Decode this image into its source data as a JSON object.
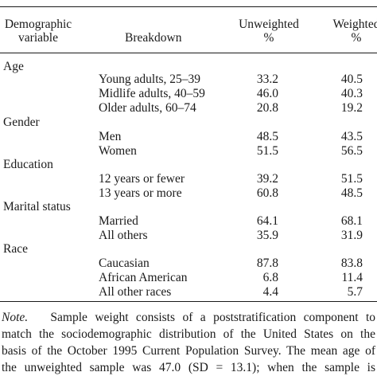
{
  "header": {
    "col1_line1": "Demographic",
    "col1_line2": "variable",
    "col2": "Breakdown",
    "col3_line1": "Unweighted",
    "col3_line2": "%",
    "col4_line1": "Weighted",
    "col4_line2": "%"
  },
  "groups": [
    {
      "name": "Age",
      "rows": [
        {
          "label": "Young adults, 25–39",
          "unweighted": "33.2",
          "weighted": "40.5"
        },
        {
          "label": "Midlife adults, 40–59",
          "unweighted": "46.0",
          "weighted": "40.3"
        },
        {
          "label": "Older adults, 60–74",
          "unweighted": "20.8",
          "weighted": "19.2"
        }
      ]
    },
    {
      "name": "Gender",
      "rows": [
        {
          "label": "Men",
          "unweighted": "48.5",
          "weighted": "43.5"
        },
        {
          "label": "Women",
          "unweighted": "51.5",
          "weighted": "56.5"
        }
      ]
    },
    {
      "name": "Education",
      "rows": [
        {
          "label": "12 years or fewer",
          "unweighted": "39.2",
          "weighted": "51.5"
        },
        {
          "label": "13 years or more",
          "unweighted": "60.8",
          "weighted": "48.5"
        }
      ]
    },
    {
      "name": "Marital status",
      "rows": [
        {
          "label": "Married",
          "unweighted": "64.1",
          "weighted": "68.1"
        },
        {
          "label": "All others",
          "unweighted": "35.9",
          "weighted": "31.9"
        }
      ]
    },
    {
      "name": "Race",
      "rows": [
        {
          "label": "Caucasian",
          "unweighted": "87.8",
          "weighted": "83.8"
        },
        {
          "label": "African American",
          "unweighted": "6.8",
          "weighted": "11.4"
        },
        {
          "label": "All other races",
          "unweighted": "4.4",
          "weighted": "5.7"
        }
      ]
    }
  ],
  "note": {
    "label": "Note.",
    "line1": "Sample weight consists of a poststratification component to",
    "line2": "match the sociodemographic distribution of the United States on the",
    "line3": "basis of the October 1995 Current Population Survey. The mean age of",
    "line4": "the unweighted sample was 47.0 (SD = 13.1); when the sample is"
  }
}
